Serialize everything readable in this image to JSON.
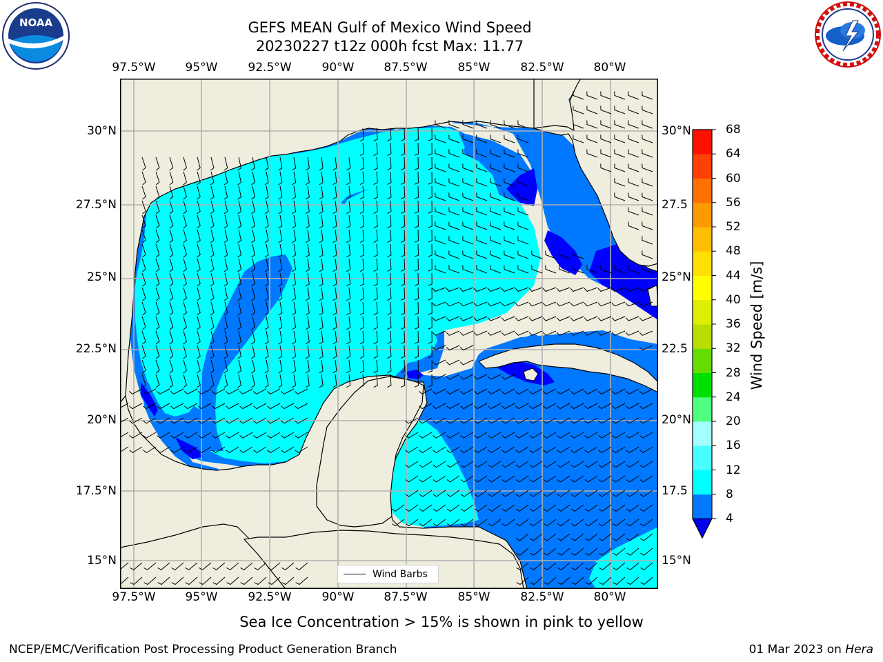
{
  "header": {
    "title_line1": "GEFS MEAN Gulf of Mexico Wind Speed",
    "title_line2": "20230227 t12z 000h fcst   Max: 11.77"
  },
  "logos": {
    "left": {
      "icon": "noaa-logo",
      "text": "NOAA",
      "ring_text": "NATIONAL OCEANIC AND ATMOSPHERIC ADMINISTRATION · U.S. DEPARTMENT OF COMMERCE"
    },
    "right": {
      "icon": "nws-logo",
      "ring_text": "NATIONAL WEATHER SERVICE"
    }
  },
  "map": {
    "lon_ticks": [
      "97.5°W",
      "95°W",
      "92.5°W",
      "90°W",
      "87.5°W",
      "85°W",
      "82.5°W",
      "80°W"
    ],
    "lat_ticks_left": [
      "30°N",
      "27.5°N",
      "25°N",
      "22.5°N",
      "20°N",
      "17.5°N",
      "15°N"
    ],
    "lat_ticks_right": [
      "30°N",
      "27.5",
      "25°N",
      "22.5",
      "20°N",
      "17.5",
      "15°N"
    ],
    "legend_label": "Wind Barbs",
    "colors": {
      "land": "#efedde",
      "grid": "#b0b0b0",
      "coast": "#000000"
    }
  },
  "colorbar": {
    "label": "Wind Speed [m/s]",
    "ticks": [
      "4",
      "8",
      "12",
      "16",
      "20",
      "24",
      "28",
      "32",
      "36",
      "40",
      "44",
      "48",
      "52",
      "56",
      "60",
      "64",
      "68"
    ],
    "colors": [
      "#0000ff",
      "#0078ff",
      "#00ffff",
      "#47ffff",
      "#a3ffff",
      "#4fff80",
      "#00e000",
      "#66dd00",
      "#bbdd00",
      "#ddee00",
      "#ffff00",
      "#ffe000",
      "#ffbf00",
      "#ff9900",
      "#ff7000",
      "#ff4000",
      "#ff1000",
      "#ff0000"
    ],
    "under_color": "#0000ee"
  },
  "caption": "Sea Ice Concentration > 15% is shown in pink to yellow",
  "footer": {
    "left": "NCEP/EMC/Verification Post Processing Product Generation Branch",
    "right_date": "01 Mar 2023 on ",
    "right_system": "Hera"
  }
}
